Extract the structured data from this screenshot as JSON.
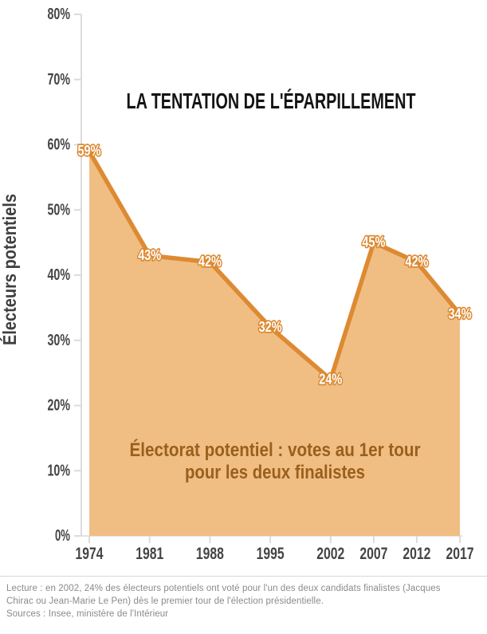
{
  "chart_data": {
    "type": "area",
    "title": "LA TENTATION DE L'ÉPARPILLEMENT",
    "ylabel": "Électeurs potentiels",
    "xlabel": "",
    "x": [
      1974,
      1981,
      1988,
      1995,
      2002,
      2007,
      2012,
      2017
    ],
    "values": [
      59,
      43,
      42,
      32,
      24,
      45,
      42,
      34
    ],
    "point_labels": [
      "59%",
      "43%",
      "42%",
      "32%",
      "24%",
      "45%",
      "42%",
      "34%"
    ],
    "xtick_labels": [
      "1974",
      "1981",
      "1988",
      "1995",
      "2002",
      "2007",
      "2012",
      "2017"
    ],
    "yticks": [
      0,
      10,
      20,
      30,
      40,
      50,
      60,
      70,
      80
    ],
    "ytick_labels": [
      "0%",
      "10%",
      "20%",
      "30%",
      "40%",
      "50%",
      "60%",
      "70%",
      "80%"
    ],
    "ylim": [
      0,
      80
    ],
    "xlim": [
      1974,
      2017
    ],
    "grid": false,
    "legend": null,
    "annotation": {
      "line1": "Électorat potentiel : votes au 1er tour",
      "line2": "pour les deux finalistes"
    },
    "colors": {
      "area_fill": "#F0BE83",
      "line": "#DD8A33",
      "point_label_text": "#FFFFFF",
      "point_label_outline": "#DD8A33",
      "annotation_text": "#9A5F1D",
      "title_text": "#141414",
      "axis_text": "#454545",
      "tick_line": "#DBDBDB",
      "footer_text": "#8A8A8A"
    }
  },
  "footer": {
    "lecture": "Lecture : en 2002, 24% des électeurs potentiels ont voté pour l'un des deux candidats finalistes (Jacques Chirac ou Jean-Marie Le Pen) dès le premier tour de l'élection présidentielle.",
    "sources": "Sources : Insee, ministère de l'Intérieur"
  }
}
